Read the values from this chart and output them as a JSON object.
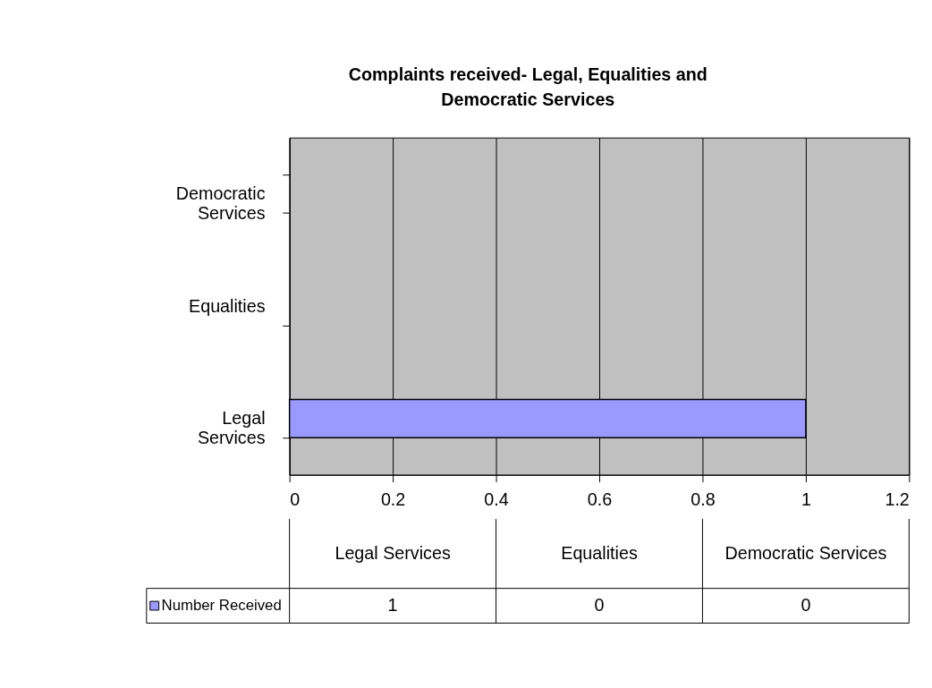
{
  "chart_data": {
    "type": "bar",
    "orientation": "horizontal",
    "title": "Complaints received- Legal, Equalities and Democratic Services",
    "categories": [
      "Democratic Services",
      "Equalities",
      "Legal Services"
    ],
    "series": [
      {
        "name": "Number Received",
        "color": "#9999ff",
        "values": [
          0,
          0,
          1
        ]
      }
    ],
    "xlim": [
      0,
      1.2
    ],
    "xticks": [
      0,
      0.2,
      0.4,
      0.6,
      0.8,
      1,
      1.2
    ],
    "grid": "x",
    "legend": "bottom",
    "annotations": [
      "1",
      "0",
      "0"
    ]
  }
}
